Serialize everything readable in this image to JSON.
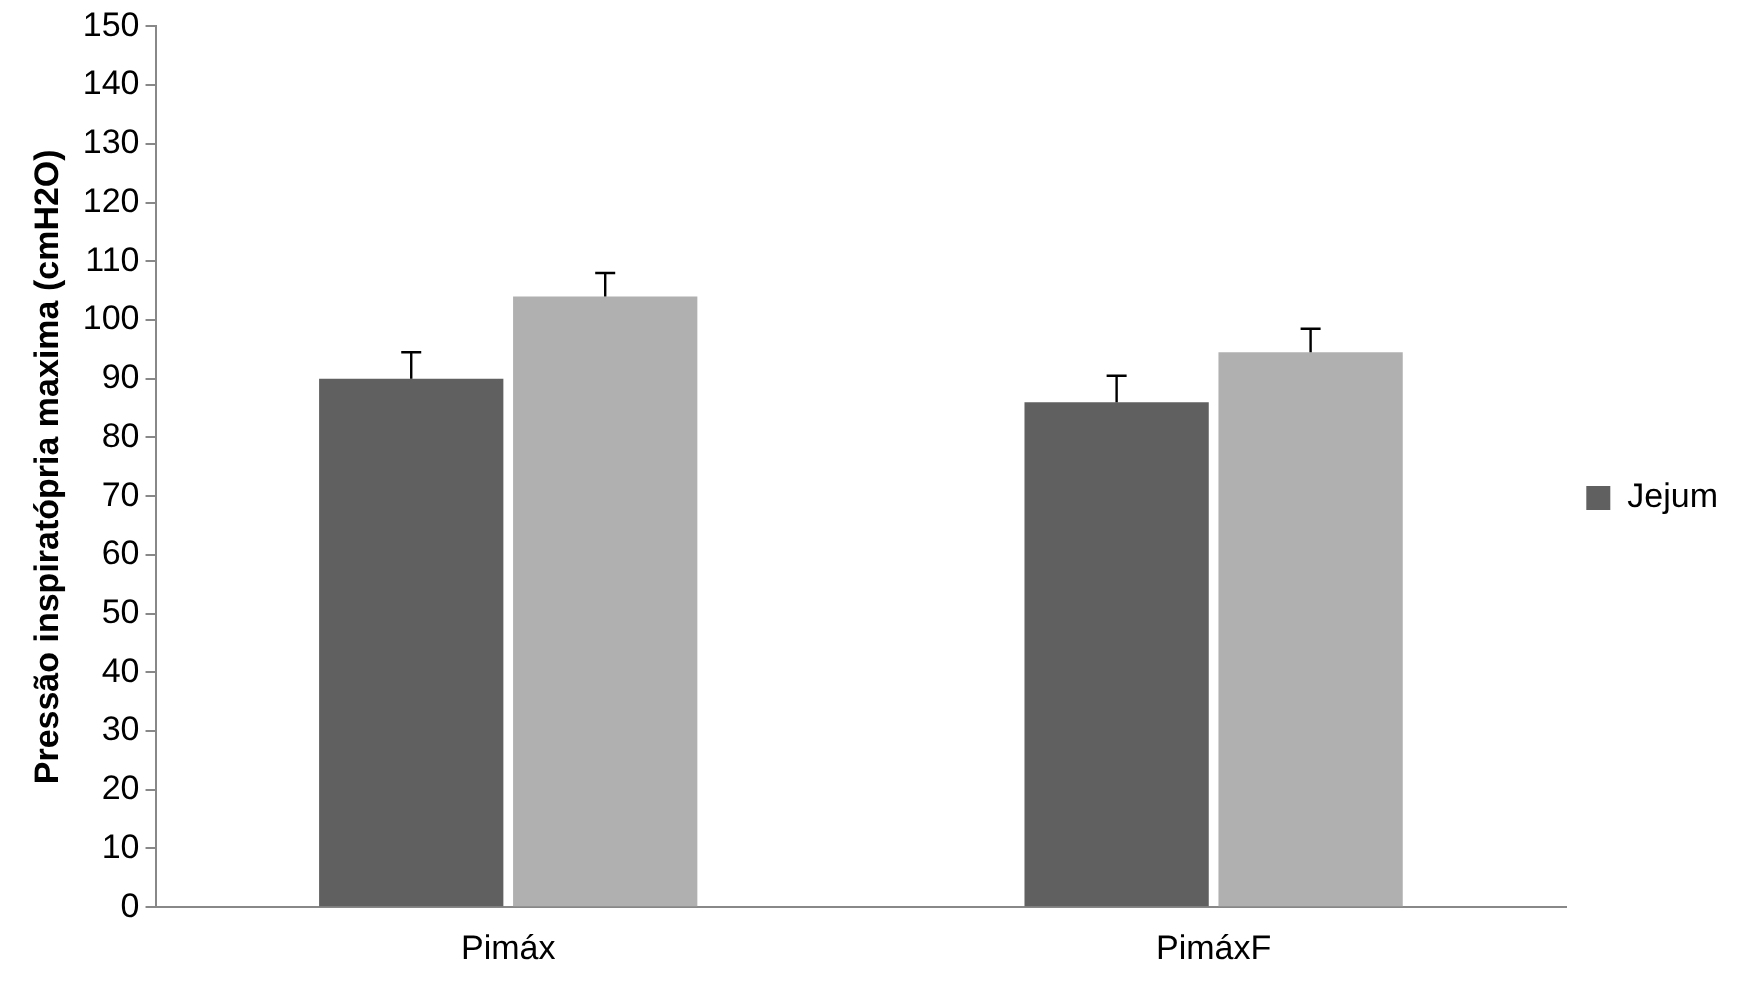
{
  "chart_data": {
    "type": "bar",
    "ylabel": "Pressão inspiratópria maxima (cmH2O)",
    "categories": [
      "Pimáx",
      "PimáxF"
    ],
    "series": [
      {
        "name": "Jejum",
        "color": "#606060",
        "values": [
          90,
          86
        ],
        "errors": [
          [
            90,
            94.5
          ],
          [
            86,
            90.5
          ]
        ]
      },
      {
        "color": "#b0b0b0",
        "values": [
          104,
          94.5
        ],
        "errors": [
          [
            104,
            108
          ],
          [
            94.5,
            98.5
          ]
        ]
      }
    ],
    "ylim": [
      0,
      150
    ],
    "yticks": [
      0,
      10,
      20,
      30,
      40,
      50,
      60,
      70,
      80,
      90,
      100,
      110,
      120,
      130,
      140,
      150
    ],
    "grid": false,
    "legend": "right"
  }
}
